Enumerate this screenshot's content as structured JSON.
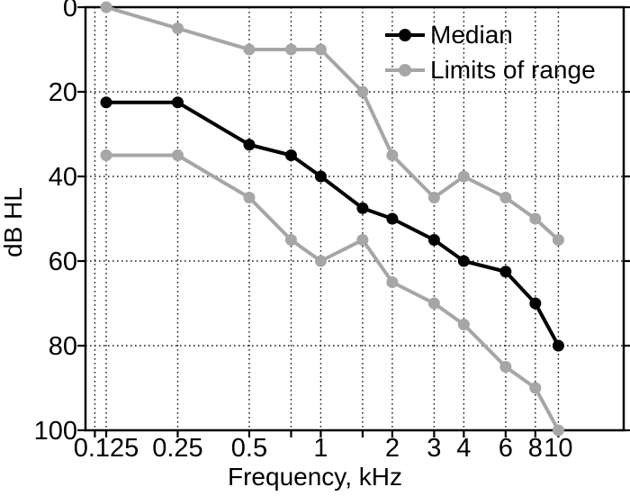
{
  "chart_data": {
    "type": "line",
    "title": "",
    "xlabel": "Frequency, kHz",
    "ylabel": "dB HL",
    "x_scale": "log",
    "y_inverted": true,
    "grid": true,
    "xlim": [
      0.102,
      18.8
    ],
    "ylim": [
      0,
      100
    ],
    "x": [
      0.125,
      0.25,
      0.5,
      0.75,
      1,
      1.5,
      2,
      3,
      4,
      6,
      8,
      10
    ],
    "series": [
      {
        "name": "Median",
        "color": "#000000",
        "values": [
          22.5,
          22.5,
          32.5,
          35,
          40,
          47.5,
          50,
          55,
          60,
          62.5,
          70,
          80
        ]
      },
      {
        "name": "Limits of range",
        "role": "upper-limit",
        "color": "#a6a6a6",
        "values": [
          0,
          5,
          10,
          10,
          10,
          20,
          35,
          45,
          40,
          45,
          50,
          55
        ]
      },
      {
        "name": "Limits of range",
        "role": "lower-limit",
        "color": "#a6a6a6",
        "values": [
          35,
          35,
          45,
          55,
          60,
          55,
          65,
          70,
          75,
          85,
          90,
          100
        ]
      }
    ],
    "x_ticks": {
      "values": [
        0.125,
        0.25,
        0.5,
        1,
        2,
        3,
        4,
        6,
        8,
        10
      ],
      "labels": [
        "0.125",
        "0.25",
        "0.5",
        "1",
        "2",
        "3",
        "4",
        "6",
        "8",
        "10"
      ]
    },
    "x_gridlines": [
      0.112,
      0.125,
      0.25,
      0.5,
      0.75,
      1,
      1.5,
      2,
      3,
      4,
      6,
      8,
      10
    ],
    "y_ticks": {
      "values": [
        0,
        20,
        40,
        60,
        80,
        100
      ],
      "labels": [
        "0",
        "20",
        "40",
        "60",
        "80",
        "100"
      ]
    },
    "y_gridlines": [
      20,
      40,
      60,
      80
    ],
    "legend": {
      "position": "top-right",
      "entries": [
        "Median",
        "Limits of range"
      ]
    }
  }
}
